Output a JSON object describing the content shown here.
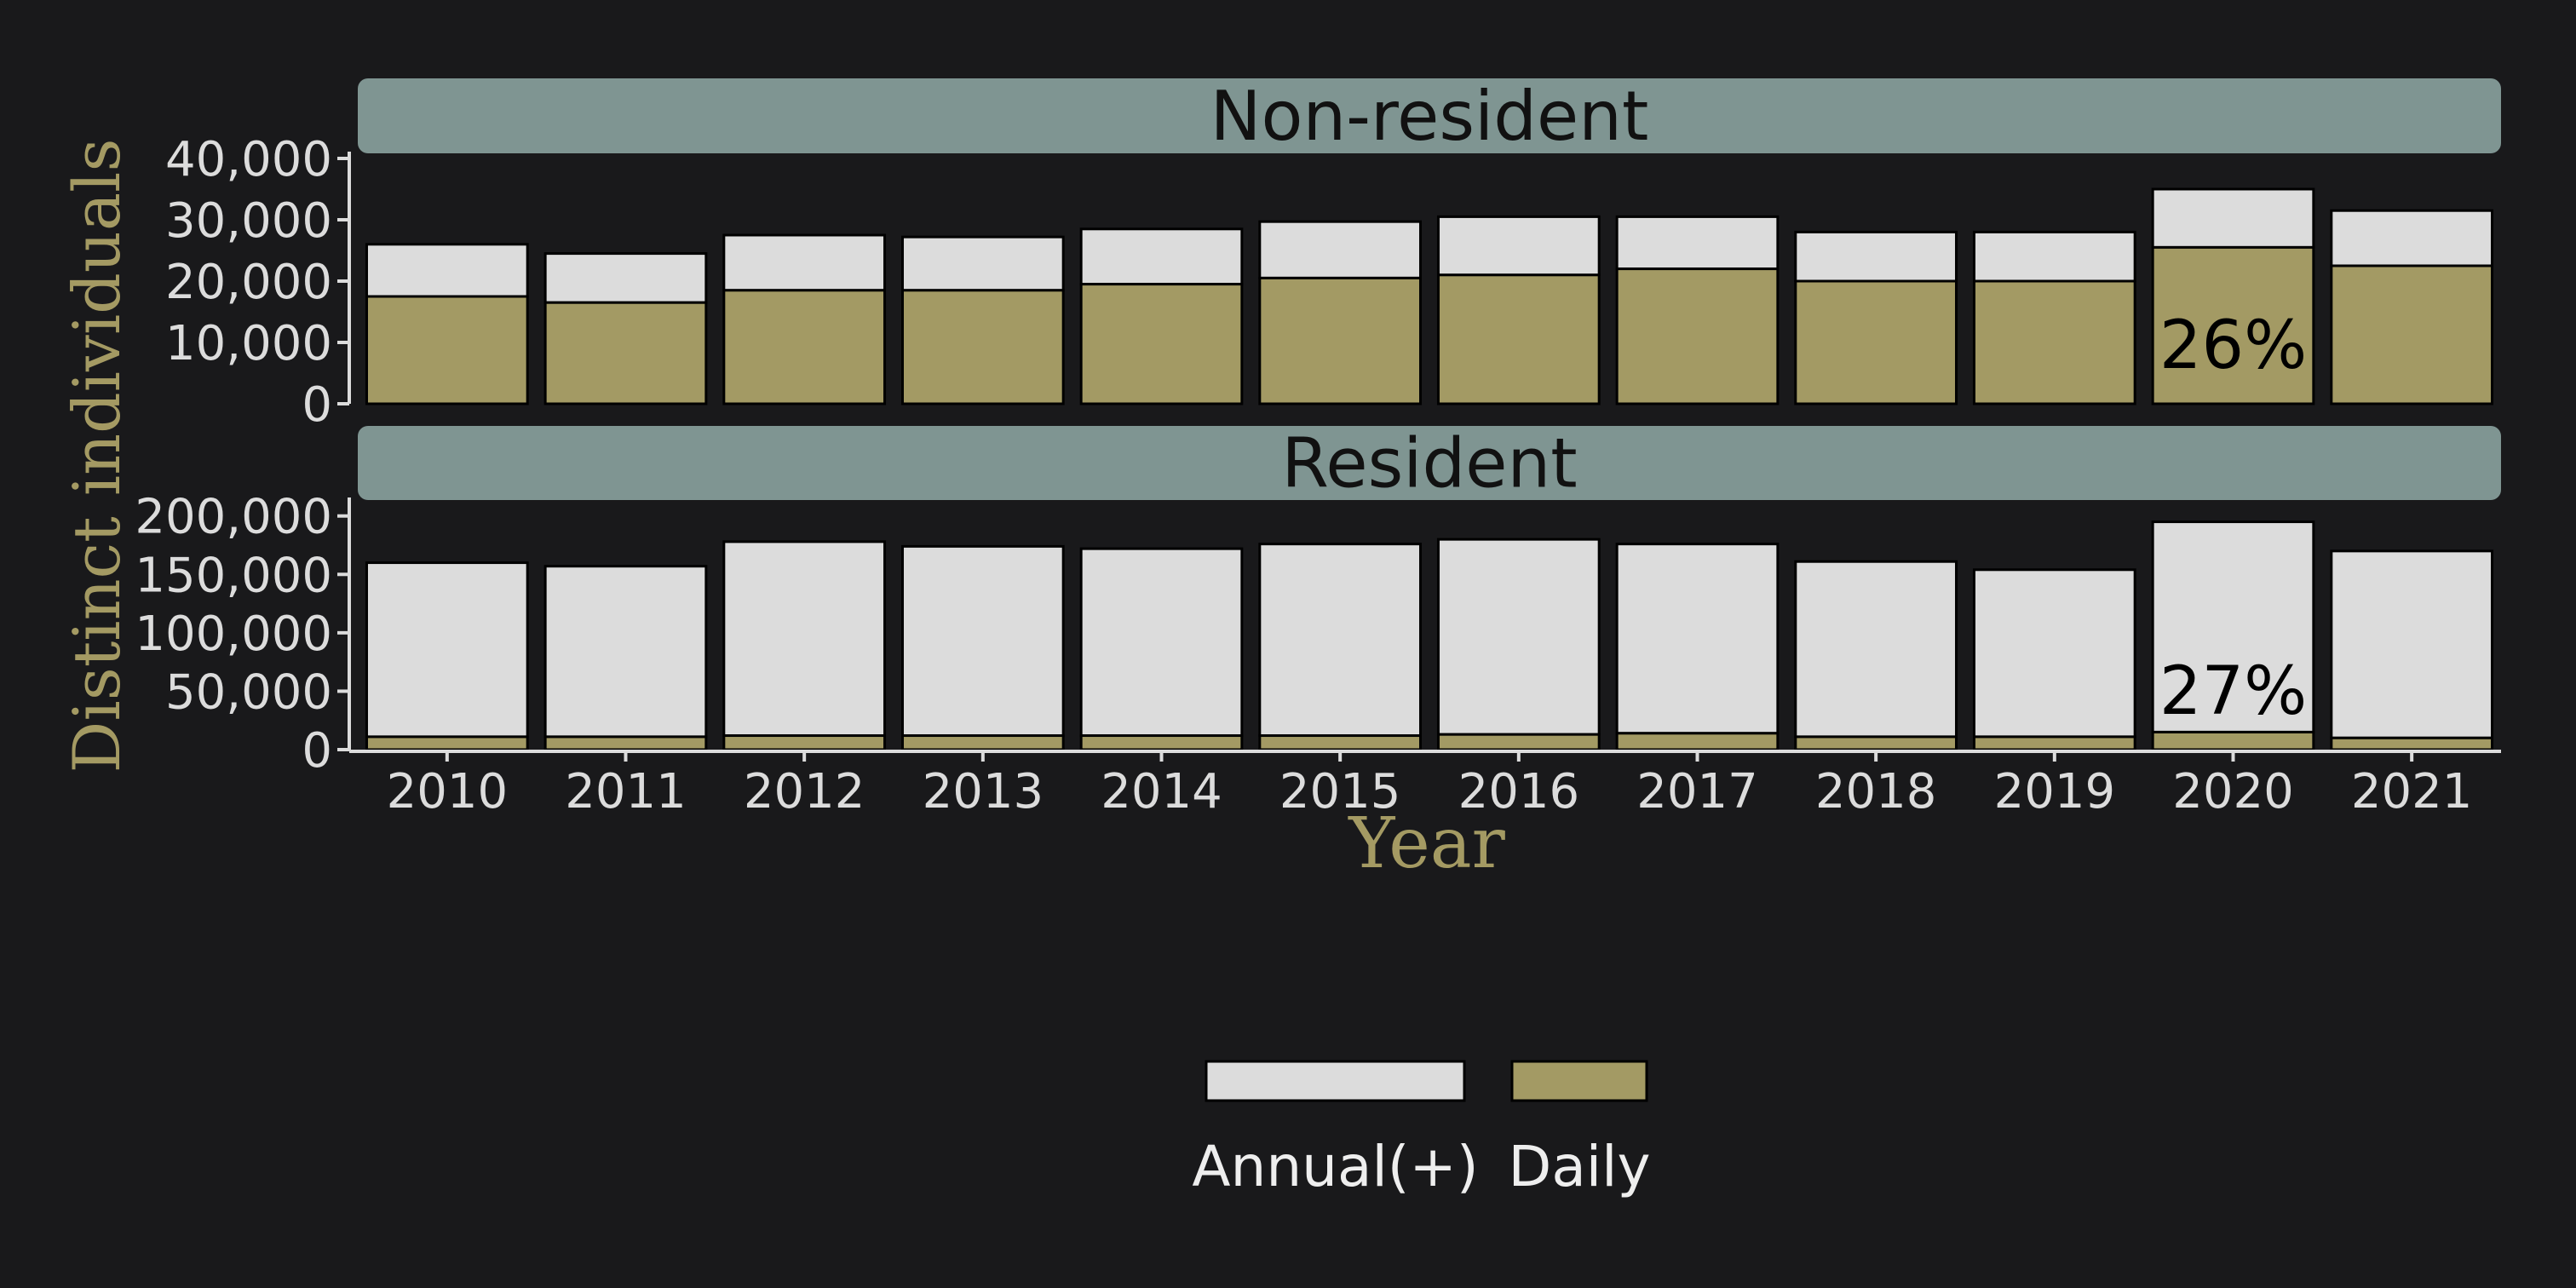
{
  "colors": {
    "background": "#19191b",
    "annual": "#dcdcdc",
    "daily": "#a39a64",
    "strip": "#7f9592",
    "axis_title": "#a49a63",
    "tick": "#dcdcdc"
  },
  "chart_data": {
    "type": "bar",
    "stacked": true,
    "xlabel": "Year",
    "ylabel": "Distinct individuals",
    "categories": [
      "2010",
      "2011",
      "2012",
      "2013",
      "2014",
      "2015",
      "2016",
      "2017",
      "2018",
      "2019",
      "2020",
      "2021"
    ],
    "legend": {
      "position": "bottom",
      "entries": [
        {
          "label": "Annual(+)",
          "color": "#dcdcdc"
        },
        {
          "label": "Daily",
          "color": "#a39a64"
        }
      ]
    },
    "panels": [
      {
        "title": "Non-resident",
        "ylim": [
          0,
          40000
        ],
        "yticks": [
          0,
          10000,
          20000,
          30000,
          40000
        ],
        "ytick_labels": [
          "0",
          "10,000",
          "20,000",
          "30,000",
          "40,000"
        ],
        "series": [
          {
            "name": "Daily",
            "values": [
              17500,
              16500,
              18500,
              18500,
              19500,
              20500,
              21000,
              22000,
              20000,
              20000,
              25500,
              22500
            ]
          },
          {
            "name": "Annual(+)",
            "values": [
              8500,
              8000,
              9000,
              8700,
              9000,
              9200,
              9500,
              8500,
              8000,
              8000,
              9500,
              9000
            ]
          }
        ],
        "annotation": {
          "category": "2020",
          "text": "26%"
        }
      },
      {
        "title": "Resident",
        "ylim": [
          0,
          210000
        ],
        "yticks": [
          0,
          50000,
          100000,
          150000,
          200000
        ],
        "ytick_labels": [
          "0",
          "50,000",
          "100,000",
          "150,000",
          "200,000"
        ],
        "series": [
          {
            "name": "Daily",
            "values": [
              11000,
              11000,
              12000,
              12000,
              12000,
              12000,
              13000,
              14000,
              11000,
              11000,
              15000,
              10000
            ]
          },
          {
            "name": "Annual(+)",
            "values": [
              149000,
              146000,
              166000,
              162000,
              160000,
              164000,
              167000,
              162000,
              150000,
              143000,
              180000,
              160000
            ]
          }
        ],
        "annotation": {
          "category": "2020",
          "text": "27%"
        }
      }
    ]
  }
}
